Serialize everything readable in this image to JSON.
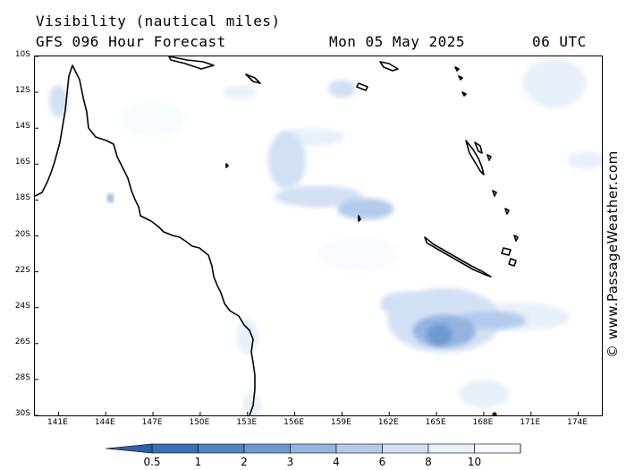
{
  "header": {
    "title": "Visibility (nautical miles)",
    "subtitle": "GFS 096 Hour Forecast",
    "date": "Mon 05 May 2025",
    "time": "06 UTC"
  },
  "credit": "© www.PassageWeather.com",
  "map": {
    "lat_labels": [
      "10S",
      "12S",
      "14S",
      "16S",
      "18S",
      "20S",
      "22S",
      "24S",
      "26S",
      "28S",
      "30S"
    ],
    "lon_labels": [
      "141E",
      "144E",
      "147E",
      "150E",
      "153E",
      "156E",
      "159E",
      "162E",
      "165E",
      "168E",
      "171E",
      "174E"
    ],
    "lon_range": [
      139.5,
      175.5
    ],
    "lat_range": [
      -10,
      -30
    ],
    "low_visibility_areas": [
      {
        "lon": 157.5,
        "lat": -17.8,
        "rx": 2.8,
        "ry": 0.6,
        "visibility": 6
      },
      {
        "lon": 160.5,
        "lat": -18.5,
        "rx": 1.8,
        "ry": 0.6,
        "visibility": 4
      },
      {
        "lon": 155.5,
        "lat": -15.8,
        "rx": 1.2,
        "ry": 1.6,
        "visibility": 6
      },
      {
        "lon": 157.0,
        "lat": -14.5,
        "rx": 2.2,
        "ry": 0.5,
        "visibility": 8
      },
      {
        "lon": 165.5,
        "lat": -24.7,
        "rx": 3.6,
        "ry": 1.8,
        "visibility": 6
      },
      {
        "lon": 165.5,
        "lat": -25.3,
        "rx": 2.0,
        "ry": 0.9,
        "visibility": 3
      },
      {
        "lon": 165.2,
        "lat": -25.5,
        "rx": 0.8,
        "ry": 0.6,
        "visibility": 2
      },
      {
        "lon": 168.5,
        "lat": -24.7,
        "rx": 2.2,
        "ry": 0.5,
        "visibility": 4
      },
      {
        "lon": 170.0,
        "lat": -24.5,
        "rx": 3.5,
        "ry": 0.8,
        "visibility": 8
      },
      {
        "lon": 163.0,
        "lat": -23.8,
        "rx": 1.6,
        "ry": 0.7,
        "visibility": 6
      },
      {
        "lon": 159.0,
        "lat": -11.8,
        "rx": 0.9,
        "ry": 0.5,
        "visibility": 6
      },
      {
        "lon": 152.5,
        "lat": -12.0,
        "rx": 1.0,
        "ry": 0.4,
        "visibility": 8
      },
      {
        "lon": 172.5,
        "lat": -11.5,
        "rx": 2.0,
        "ry": 1.4,
        "visibility": 8
      },
      {
        "lon": 174.5,
        "lat": -15.8,
        "rx": 1.2,
        "ry": 0.5,
        "visibility": 8
      },
      {
        "lon": 141.0,
        "lat": -12.5,
        "rx": 0.6,
        "ry": 0.9,
        "visibility": 6
      },
      {
        "lon": 153.0,
        "lat": -25.6,
        "rx": 0.7,
        "ry": 1.0,
        "visibility": 8
      },
      {
        "lon": 153.3,
        "lat": -29.5,
        "rx": 0.6,
        "ry": 0.8,
        "visibility": 8
      },
      {
        "lon": 168.0,
        "lat": -28.8,
        "rx": 1.6,
        "ry": 0.8,
        "visibility": 8
      },
      {
        "lon": 160.0,
        "lat": -21.0,
        "rx": 2.5,
        "ry": 1.0,
        "visibility": 10
      },
      {
        "lon": 147.0,
        "lat": -13.5,
        "rx": 2.0,
        "ry": 1.0,
        "visibility": 10
      },
      {
        "lon": 144.3,
        "lat": -17.9,
        "rx": 0.2,
        "ry": 0.25,
        "visibility": 2
      }
    ]
  },
  "legend": {
    "labels": [
      "0.5",
      "1",
      "2",
      "3",
      "4",
      "6",
      "8",
      "10"
    ],
    "colors": [
      "#3a6fb8",
      "#4f82c6",
      "#6f99d2",
      "#93b3e0",
      "#b5cbeb",
      "#d2e0f4",
      "#e8f0fa",
      "#f7fafe"
    ]
  },
  "colors": {
    "ocean": "#ffffff",
    "coast": "#000000"
  }
}
